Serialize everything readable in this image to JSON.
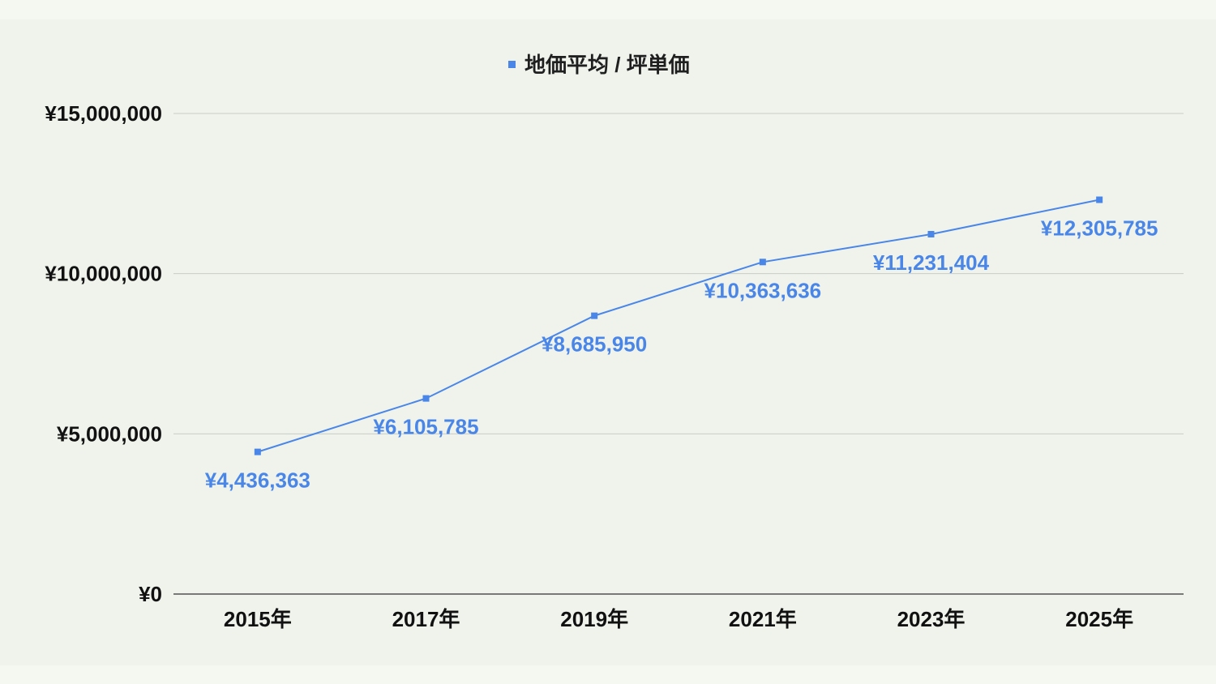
{
  "chart_data": {
    "type": "line",
    "title": "",
    "xlabel": "",
    "ylabel": "",
    "categories": [
      "2015年",
      "2017年",
      "2019年",
      "2021年",
      "2023年",
      "2025年"
    ],
    "series": [
      {
        "name": "地価平均 / 坪単価",
        "values": [
          4436363,
          6105785,
          8685950,
          10363636,
          11231404,
          12305785
        ],
        "data_labels": [
          "¥4,436,363",
          "¥6,105,785",
          "¥8,685,950",
          "¥10,363,636",
          "¥11,231,404",
          "¥12,305,785"
        ]
      }
    ],
    "yticks": [
      0,
      5000000,
      10000000,
      15000000
    ],
    "ytick_labels": [
      "¥0",
      "¥5,000,000",
      "¥10,000,000",
      "¥15,000,000"
    ],
    "ylim": [
      0,
      15000000
    ],
    "grid": true,
    "legend": "top",
    "colors": {
      "series": "#4a86e8",
      "grid": "#c8ccc5",
      "axis": "#333333",
      "background": "#eff3ec"
    }
  }
}
